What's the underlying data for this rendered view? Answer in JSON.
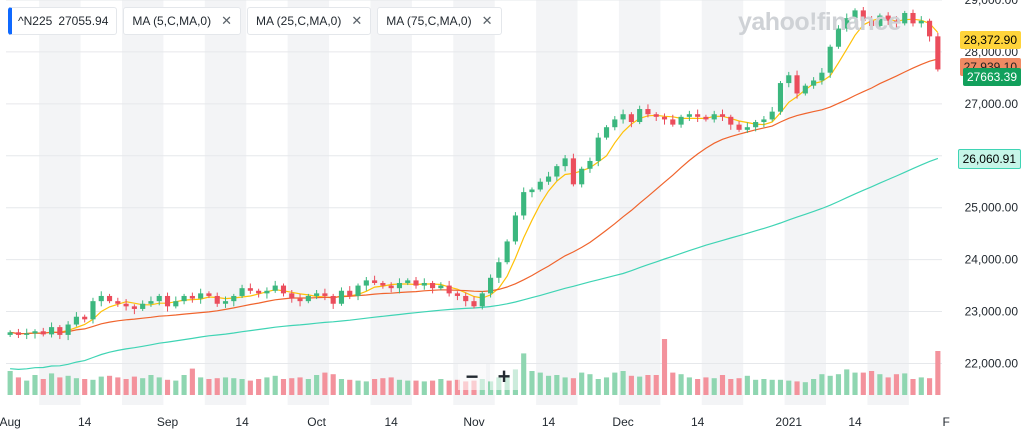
{
  "legend": {
    "symbol": "^N225",
    "symbol_value": "27055.94",
    "ma5_label": "MA (5,C,MA,0)",
    "ma25_label": "MA (25,C,MA,0)",
    "ma75_label": "MA (75,C,MA,0)",
    "close_glyph": "✕"
  },
  "watermark": "yahoo!finance",
  "price_tags": {
    "ma5": "28,372.90",
    "ma25": "27,939.10",
    "last": "27663.39",
    "ma75": "26,060.91"
  },
  "zoom": {
    "minus": "−",
    "plus": "+"
  },
  "colors": {
    "up": "#3bb77e",
    "down": "#eb4d5c",
    "vol_up": "#8fd6b1",
    "vol_down": "#f3929c",
    "ma5": "#ffc107",
    "ma25": "#f0642d",
    "ma75": "#3fd4b4",
    "band": "#f3f4f6",
    "grid": "#e6e8eb"
  },
  "chart_data": {
    "type": "candlestick",
    "ylim": [
      21200,
      29000
    ],
    "yticks": [
      22000,
      23000,
      24000,
      25000,
      26000,
      27000,
      28000,
      29000
    ],
    "ytick_labels": [
      "22,000.00",
      "23,000.00",
      "24,000.00",
      "25,000.00",
      "26,000.00",
      "27,000.00",
      "28,000.00",
      "29,000.00"
    ],
    "xtick_labels": [
      {
        "label": "Aug",
        "i": 0
      },
      {
        "label": "14",
        "i": 9
      },
      {
        "label": "Sep",
        "i": 19
      },
      {
        "label": "14",
        "i": 28
      },
      {
        "label": "Oct",
        "i": 37
      },
      {
        "label": "14",
        "i": 46
      },
      {
        "label": "Nov",
        "i": 56
      },
      {
        "label": "14",
        "i": 65
      },
      {
        "label": "Dec",
        "i": 74
      },
      {
        "label": "14",
        "i": 83
      },
      {
        "label": "2021",
        "i": 94
      },
      {
        "label": "14",
        "i": 102
      },
      {
        "label": "F",
        "i": 113
      }
    ],
    "close": [
      22600,
      22550,
      22580,
      22620,
      22560,
      22700,
      22550,
      22750,
      22900,
      22850,
      23200,
      23300,
      23200,
      23150,
      23100,
      23050,
      23150,
      23200,
      23300,
      23100,
      23200,
      23300,
      23250,
      23350,
      23300,
      23150,
      23200,
      23300,
      23450,
      23400,
      23350,
      23400,
      23500,
      23350,
      23250,
      23200,
      23300,
      23350,
      23300,
      23150,
      23400,
      23300,
      23500,
      23600,
      23550,
      23500,
      23450,
      23550,
      23600,
      23500,
      23550,
      23450,
      23500,
      23350,
      23300,
      23200,
      23100,
      23350,
      23650,
      23950,
      24350,
      24850,
      25300,
      25350,
      25500,
      25600,
      25800,
      25950,
      25450,
      25750,
      25900,
      26350,
      26550,
      26700,
      26800,
      26650,
      26900,
      26800,
      26750,
      26700,
      26600,
      26750,
      26800,
      26750,
      26700,
      26800,
      26750,
      26600,
      26500,
      26550,
      26650,
      26700,
      26850,
      27400,
      27550,
      27200,
      27350,
      27450,
      27600,
      28100,
      28450,
      28650,
      28800,
      28600,
      28500,
      28700,
      28600,
      28550,
      28750,
      28550,
      28600,
      28300,
      27663
    ],
    "volume": [
      0.3,
      0.22,
      0.18,
      0.25,
      0.2,
      0.27,
      0.22,
      0.24,
      0.21,
      0.2,
      0.19,
      0.23,
      0.24,
      0.22,
      0.2,
      0.23,
      0.21,
      0.25,
      0.22,
      0.19,
      0.18,
      0.25,
      0.33,
      0.22,
      0.2,
      0.21,
      0.22,
      0.21,
      0.2,
      0.18,
      0.2,
      0.22,
      0.24,
      0.2,
      0.21,
      0.22,
      0.2,
      0.25,
      0.28,
      0.26,
      0.2,
      0.19,
      0.18,
      0.17,
      0.2,
      0.21,
      0.22,
      0.19,
      0.18,
      0.18,
      0.17,
      0.18,
      0.2,
      0.18,
      0.19,
      0.17,
      0.18,
      0.2,
      0.17,
      0.22,
      0.25,
      0.32,
      0.52,
      0.3,
      0.28,
      0.24,
      0.25,
      0.22,
      0.21,
      0.28,
      0.26,
      0.2,
      0.22,
      0.28,
      0.3,
      0.24,
      0.23,
      0.25,
      0.25,
      0.7,
      0.28,
      0.26,
      0.22,
      0.2,
      0.22,
      0.21,
      0.25,
      0.2,
      0.21,
      0.24,
      0.19,
      0.2,
      0.19,
      0.19,
      0.18,
      0.17,
      0.16,
      0.2,
      0.26,
      0.24,
      0.26,
      0.32,
      0.28,
      0.28,
      0.3,
      0.26,
      0.22,
      0.26,
      0.27,
      0.2,
      0.22,
      0.21,
      0.55
    ]
  }
}
